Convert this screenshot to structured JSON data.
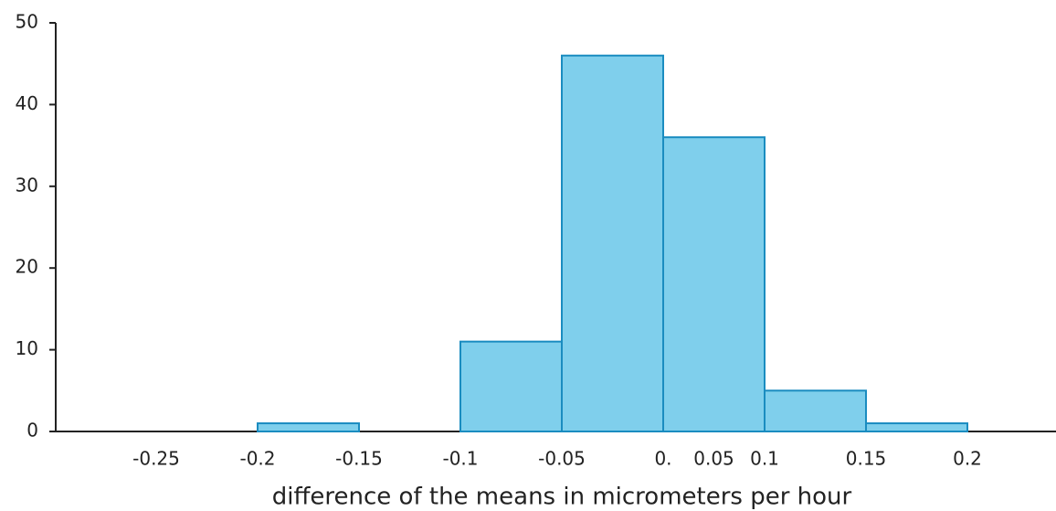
{
  "chart_data": {
    "type": "histogram",
    "xlabel": "difference of the means in micrometers per hour",
    "bins": [
      -0.25,
      -0.2,
      -0.15,
      -0.1,
      -0.05,
      0,
      0.1,
      0.15,
      0.2
    ],
    "values": [
      0,
      1,
      0,
      11,
      46,
      36,
      5,
      1
    ],
    "color": "#7fcfec",
    "edge_color": "#1a8cc0",
    "ylim": [
      0,
      50
    ],
    "yticks": [
      0,
      10,
      20,
      30,
      40,
      50
    ],
    "xticks": [
      -0.25,
      -0.2,
      -0.15,
      -0.1,
      -0.05,
      {
        "value": 0,
        "label": "0."
      },
      0.05,
      0.1,
      0.15,
      0.2
    ]
  }
}
